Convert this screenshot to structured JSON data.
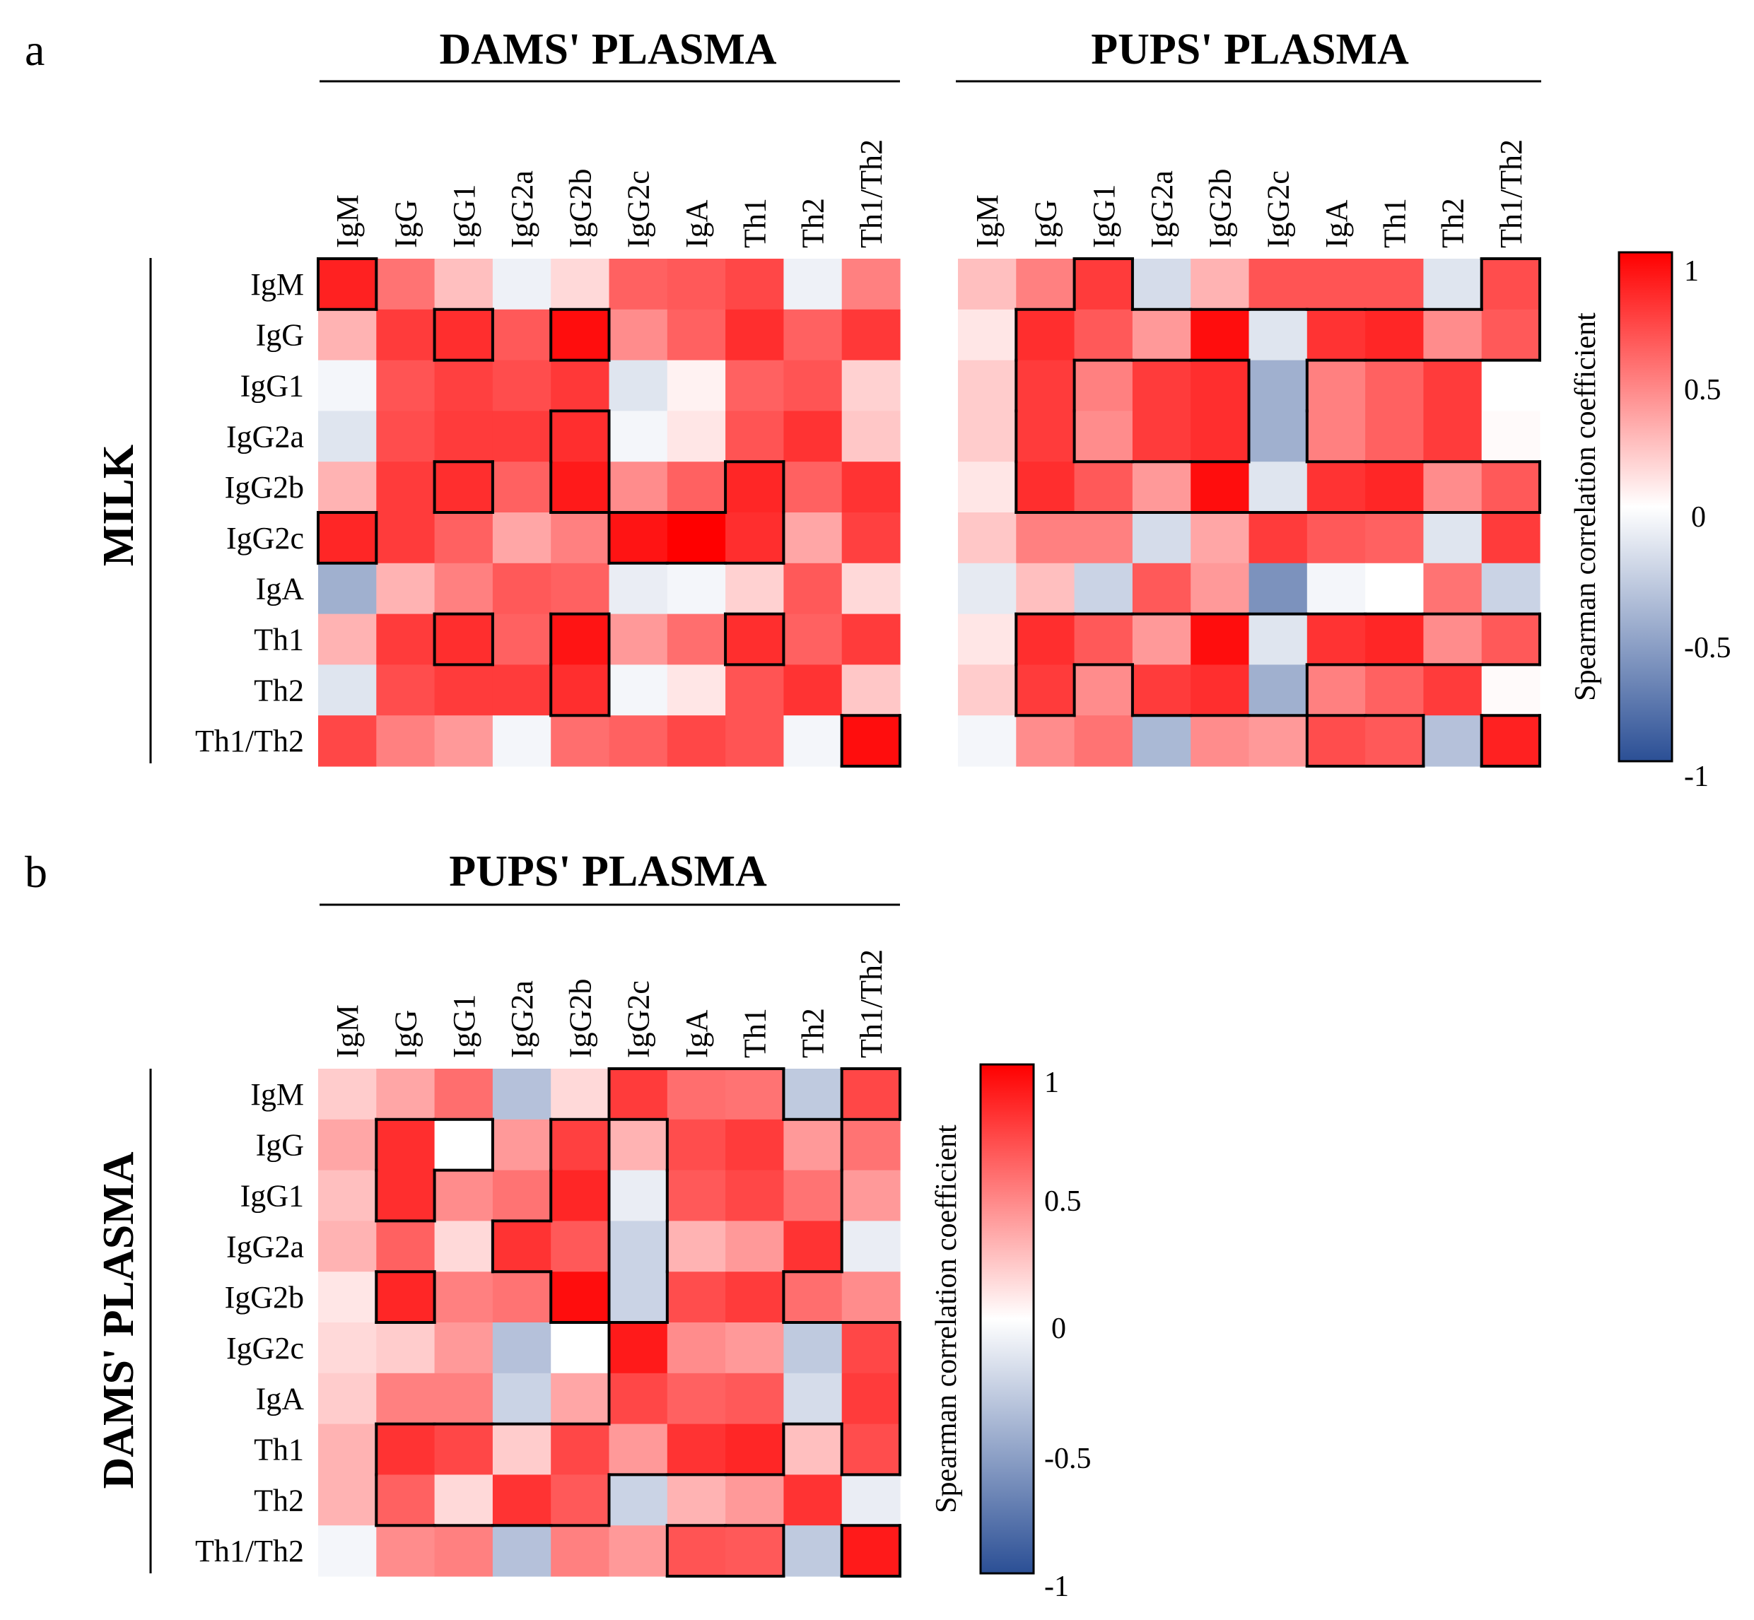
{
  "panels": {
    "a": {
      "letter": "a",
      "row_group_label": "MILK",
      "heatmaps": [
        {
          "title": "DAMS' PLASMA",
          "columns": [
            "IgM",
            "IgG",
            "IgG1",
            "IgG2a",
            "IgG2b",
            "IgG2c",
            "IgA",
            "Th1",
            "Th2",
            "Th1/Th2"
          ],
          "rows": [
            "IgM",
            "IgG",
            "IgG1",
            "IgG2a",
            "IgG2b",
            "IgG2c",
            "IgA",
            "Th1",
            "Th2",
            "Th1/Th2"
          ]
        },
        {
          "title": "PUPS' PLASMA",
          "columns": [
            "IgM",
            "IgG",
            "IgG1",
            "IgG2a",
            "IgG2b",
            "IgG2c",
            "IgA",
            "Th1",
            "Th2",
            "Th1/Th2"
          ],
          "rows": [
            "IgM",
            "IgG",
            "IgG1",
            "IgG2a",
            "IgG2b",
            "IgG2c",
            "IgA",
            "Th1",
            "Th2",
            "Th1/Th2"
          ]
        }
      ],
      "colorbar": {
        "title": "Spearman correlation coefficient",
        "ticks": [
          "1",
          "0.5",
          "0",
          "-0.5",
          "-1"
        ]
      }
    },
    "b": {
      "letter": "b",
      "row_group_label": "DAMS' PLASMA",
      "heatmaps": [
        {
          "title": "PUPS' PLASMA",
          "columns": [
            "IgM",
            "IgG",
            "IgG1",
            "IgG2a",
            "IgG2b",
            "IgG2c",
            "IgA",
            "Th1",
            "Th2",
            "Th1/Th2"
          ],
          "rows": [
            "IgM",
            "IgG",
            "IgG1",
            "IgG2a",
            "IgG2b",
            "IgG2c",
            "IgA",
            "Th1",
            "Th2",
            "Th1/Th2"
          ]
        }
      ],
      "colorbar": {
        "title": "Spearman correlation coefficient",
        "ticks": [
          "1",
          "0.5",
          "0",
          "-0.5",
          "-1"
        ]
      }
    }
  },
  "colors": {
    "positive": "#ff0000",
    "zero": "#ffffff",
    "negative": "#2b4f95",
    "outline": "#000000"
  },
  "chart_data": [
    {
      "type": "heatmap",
      "title": "DAMS' PLASMA",
      "panel": "a",
      "row_group": "MILK",
      "colorbar_range": [
        -1,
        1
      ],
      "x": [
        "IgM",
        "IgG",
        "IgG1",
        "IgG2a",
        "IgG2b",
        "IgG2c",
        "IgA",
        "Th1",
        "Th2",
        "Th1/Th2"
      ],
      "y": [
        "IgM",
        "IgG",
        "IgG1",
        "IgG2a",
        "IgG2b",
        "IgG2c",
        "IgA",
        "Th1",
        "Th2",
        "Th1/Th2"
      ],
      "values": [
        [
          0.87,
          0.55,
          0.25,
          -0.08,
          0.15,
          0.62,
          0.65,
          0.72,
          -0.08,
          0.5
        ],
        [
          0.3,
          0.77,
          0.82,
          0.65,
          0.95,
          0.45,
          0.62,
          0.82,
          0.62,
          0.78
        ],
        [
          -0.05,
          0.67,
          0.75,
          0.7,
          0.78,
          -0.15,
          0.05,
          0.62,
          0.67,
          0.18
        ],
        [
          -0.15,
          0.7,
          0.77,
          0.77,
          0.82,
          -0.05,
          0.1,
          0.67,
          0.8,
          0.22
        ],
        [
          0.3,
          0.77,
          0.82,
          0.62,
          0.9,
          0.45,
          0.62,
          0.85,
          0.62,
          0.8
        ],
        [
          0.85,
          0.77,
          0.62,
          0.35,
          0.5,
          0.92,
          1.0,
          0.82,
          0.35,
          0.75
        ],
        [
          -0.45,
          0.3,
          0.5,
          0.65,
          0.62,
          -0.1,
          -0.05,
          0.18,
          0.65,
          0.15
        ],
        [
          0.3,
          0.77,
          0.82,
          0.62,
          0.92,
          0.4,
          0.57,
          0.82,
          0.62,
          0.77
        ],
        [
          -0.15,
          0.7,
          0.77,
          0.77,
          0.82,
          -0.05,
          0.1,
          0.67,
          0.8,
          0.22
        ],
        [
          0.72,
          0.5,
          0.4,
          -0.05,
          0.57,
          0.62,
          0.72,
          0.67,
          -0.05,
          0.95
        ]
      ],
      "outlined": [
        [
          1,
          0,
          0,
          0,
          0,
          0,
          0,
          0,
          0,
          0
        ],
        [
          0,
          0,
          1,
          0,
          1,
          0,
          0,
          0,
          0,
          0
        ],
        [
          0,
          0,
          0,
          0,
          0,
          0,
          0,
          0,
          0,
          0
        ],
        [
          0,
          0,
          0,
          0,
          1,
          0,
          0,
          0,
          0,
          0
        ],
        [
          0,
          0,
          1,
          0,
          1,
          0,
          0,
          1,
          0,
          0
        ],
        [
          1,
          0,
          0,
          0,
          0,
          1,
          1,
          1,
          0,
          0
        ],
        [
          0,
          0,
          0,
          0,
          0,
          0,
          0,
          0,
          0,
          0
        ],
        [
          0,
          0,
          1,
          0,
          1,
          0,
          0,
          1,
          0,
          0
        ],
        [
          0,
          0,
          0,
          0,
          1,
          0,
          0,
          0,
          0,
          0
        ],
        [
          0,
          0,
          0,
          0,
          0,
          0,
          0,
          0,
          0,
          1
        ]
      ]
    },
    {
      "type": "heatmap",
      "title": "PUPS' PLASMA",
      "panel": "a",
      "row_group": "MILK",
      "colorbar_range": [
        -1,
        1
      ],
      "x": [
        "IgM",
        "IgG",
        "IgG1",
        "IgG2a",
        "IgG2b",
        "IgG2c",
        "IgA",
        "Th1",
        "Th2",
        "Th1/Th2"
      ],
      "y": [
        "IgM",
        "IgG",
        "IgG1",
        "IgG2a",
        "IgG2b",
        "IgG2c",
        "IgA",
        "Th1",
        "Th2",
        "Th1/Th2"
      ],
      "values": [
        [
          0.25,
          0.5,
          0.77,
          -0.2,
          0.3,
          0.67,
          0.67,
          0.67,
          -0.15,
          0.7
        ],
        [
          0.1,
          0.82,
          0.65,
          0.4,
          0.95,
          -0.15,
          0.8,
          0.85,
          0.45,
          0.65
        ],
        [
          0.2,
          0.77,
          0.5,
          0.77,
          0.82,
          -0.45,
          0.5,
          0.62,
          0.77,
          0.0
        ],
        [
          0.2,
          0.77,
          0.45,
          0.77,
          0.82,
          -0.45,
          0.5,
          0.62,
          0.77,
          0.02
        ],
        [
          0.1,
          0.82,
          0.65,
          0.4,
          0.95,
          -0.15,
          0.8,
          0.85,
          0.45,
          0.65
        ],
        [
          0.22,
          0.5,
          0.5,
          -0.2,
          0.35,
          0.77,
          0.65,
          0.62,
          -0.15,
          0.77
        ],
        [
          -0.12,
          0.25,
          -0.25,
          0.65,
          0.4,
          -0.62,
          -0.05,
          0.0,
          0.55,
          -0.25
        ],
        [
          0.1,
          0.82,
          0.65,
          0.4,
          0.95,
          -0.15,
          0.8,
          0.85,
          0.45,
          0.65
        ],
        [
          0.2,
          0.77,
          0.45,
          0.77,
          0.82,
          -0.45,
          0.5,
          0.62,
          0.77,
          0.02
        ],
        [
          -0.05,
          0.45,
          0.55,
          -0.4,
          0.45,
          0.4,
          0.7,
          0.65,
          -0.35,
          0.87
        ]
      ],
      "outlined": [
        [
          0,
          0,
          1,
          0,
          0,
          0,
          0,
          0,
          0,
          1
        ],
        [
          0,
          1,
          1,
          1,
          1,
          1,
          1,
          1,
          1,
          1
        ],
        [
          0,
          1,
          0,
          0,
          0,
          1,
          0,
          0,
          0,
          0
        ],
        [
          0,
          1,
          0,
          0,
          0,
          1,
          0,
          0,
          0,
          0
        ],
        [
          0,
          1,
          1,
          1,
          1,
          1,
          1,
          1,
          1,
          1
        ],
        [
          0,
          0,
          0,
          0,
          0,
          0,
          0,
          0,
          0,
          0
        ],
        [
          0,
          0,
          0,
          0,
          0,
          0,
          0,
          0,
          0,
          0
        ],
        [
          0,
          1,
          1,
          1,
          1,
          1,
          1,
          1,
          1,
          1
        ],
        [
          0,
          1,
          0,
          1,
          1,
          1,
          0,
          0,
          0,
          0
        ],
        [
          0,
          0,
          0,
          0,
          0,
          0,
          1,
          1,
          0,
          1
        ]
      ]
    },
    {
      "type": "heatmap",
      "title": "PUPS' PLASMA",
      "panel": "b",
      "row_group": "DAMS' PLASMA",
      "colorbar_range": [
        -1,
        1
      ],
      "x": [
        "IgM",
        "IgG",
        "IgG1",
        "IgG2a",
        "IgG2b",
        "IgG2c",
        "IgA",
        "Th1",
        "Th2",
        "Th1/Th2"
      ],
      "y": [
        "IgM",
        "IgG",
        "IgG1",
        "IgG2a",
        "IgG2b",
        "IgG2c",
        "IgA",
        "Th1",
        "Th2",
        "Th1/Th2"
      ],
      "values": [
        [
          0.2,
          0.35,
          0.57,
          -0.35,
          0.15,
          0.77,
          0.57,
          0.55,
          -0.3,
          0.72
        ],
        [
          0.35,
          0.82,
          0.0,
          0.4,
          0.75,
          0.3,
          0.7,
          0.77,
          0.4,
          0.55
        ],
        [
          0.25,
          0.82,
          0.45,
          0.55,
          0.85,
          -0.1,
          0.65,
          0.72,
          0.55,
          0.4
        ],
        [
          0.3,
          0.62,
          0.15,
          0.8,
          0.65,
          -0.25,
          0.3,
          0.4,
          0.8,
          -0.1
        ],
        [
          0.1,
          0.85,
          0.5,
          0.55,
          0.95,
          -0.25,
          0.7,
          0.77,
          0.57,
          0.45
        ],
        [
          0.15,
          0.2,
          0.4,
          -0.35,
          0.0,
          0.9,
          0.45,
          0.4,
          -0.3,
          0.72
        ],
        [
          0.2,
          0.5,
          0.5,
          -0.25,
          0.35,
          0.72,
          0.62,
          0.65,
          -0.2,
          0.77
        ],
        [
          0.3,
          0.8,
          0.72,
          0.2,
          0.72,
          0.4,
          0.8,
          0.85,
          0.25,
          0.7
        ],
        [
          0.3,
          0.62,
          0.15,
          0.8,
          0.65,
          -0.25,
          0.3,
          0.4,
          0.8,
          -0.1
        ],
        [
          -0.05,
          0.45,
          0.5,
          -0.35,
          0.5,
          0.4,
          0.67,
          0.65,
          -0.3,
          0.9
        ]
      ],
      "outlined": [
        [
          0,
          0,
          0,
          0,
          0,
          1,
          1,
          1,
          0,
          1
        ],
        [
          0,
          1,
          1,
          0,
          1,
          0,
          1,
          1,
          1,
          0
        ],
        [
          0,
          1,
          0,
          0,
          1,
          0,
          1,
          1,
          1,
          0
        ],
        [
          0,
          0,
          0,
          1,
          1,
          0,
          1,
          1,
          1,
          0
        ],
        [
          0,
          1,
          0,
          0,
          1,
          0,
          1,
          1,
          0,
          0
        ],
        [
          0,
          0,
          0,
          0,
          0,
          1,
          1,
          1,
          1,
          1
        ],
        [
          0,
          0,
          0,
          0,
          0,
          1,
          1,
          1,
          1,
          1
        ],
        [
          0,
          1,
          1,
          1,
          1,
          1,
          1,
          1,
          0,
          1
        ],
        [
          0,
          1,
          1,
          1,
          1,
          0,
          0,
          0,
          0,
          0
        ],
        [
          0,
          0,
          0,
          0,
          0,
          0,
          1,
          1,
          0,
          1
        ]
      ]
    }
  ]
}
